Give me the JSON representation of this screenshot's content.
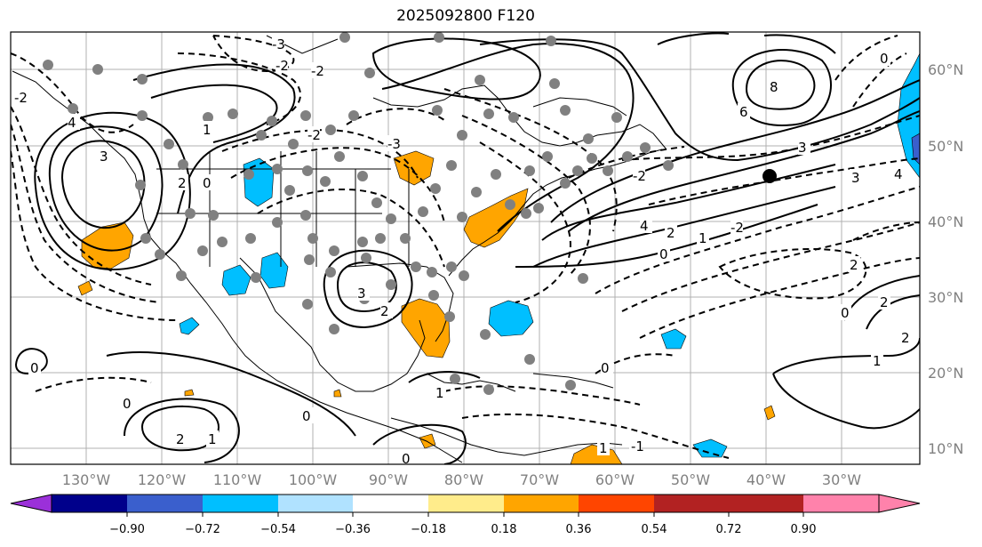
{
  "title": "2025092800 F120",
  "latitudes": [
    "60°N",
    "50°N",
    "40°N",
    "30°N",
    "20°N",
    "10°N"
  ],
  "longitudes": [
    "130°W",
    "120°W",
    "110°W",
    "100°W",
    "90°W",
    "80°W",
    "70°W",
    "60°W",
    "50°W",
    "40°W",
    "30°W"
  ],
  "contour_labels": [
    "-3",
    "-2",
    "-1",
    "0",
    "1",
    "2",
    "3",
    "4",
    "6",
    "8"
  ],
  "colorbar": {
    "ticks": [
      "−0.90",
      "−0.72",
      "−0.54",
      "−0.36",
      "−0.18",
      "0.18",
      "0.36",
      "0.54",
      "0.72",
      "0.90"
    ],
    "colors": [
      "#9b30d9",
      "#00008b",
      "#3a5fcd",
      "#00bfff",
      "#b0e2ff",
      "#ffffff",
      "#ffec8b",
      "#ffa500",
      "#ff4500",
      "#b22222",
      "#ff82ab"
    ]
  },
  "colors": {
    "negative_fill": "#00bfff",
    "positive_fill": "#ffa500",
    "station": "#808080",
    "grid": "#b0b0b0"
  }
}
